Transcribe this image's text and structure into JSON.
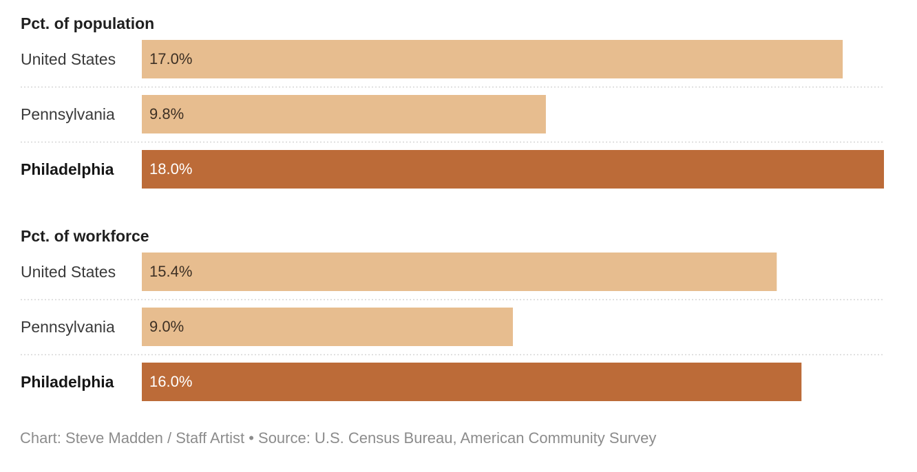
{
  "chart_data": {
    "type": "bar",
    "orientation": "horizontal",
    "xlim": [
      0,
      18.0
    ],
    "value_suffix": "%",
    "colors": {
      "default_bar": "#e7bd8f",
      "highlight_bar": "#bc6b38",
      "default_text": "#3d3024",
      "highlight_text": "#ffffff",
      "divider": "#d6d6d6"
    },
    "panels": [
      {
        "title": "Pct. of population",
        "categories": [
          "United States",
          "Pennsylvania",
          "Philadelphia"
        ],
        "values": [
          17.0,
          9.8,
          18.0
        ],
        "value_labels": [
          "17.0%",
          "9.8%",
          "18.0%"
        ],
        "highlight": [
          false,
          false,
          true
        ]
      },
      {
        "title": "Pct. of workforce",
        "categories": [
          "United States",
          "Pennsylvania",
          "Philadelphia"
        ],
        "values": [
          15.4,
          9.0,
          16.0
        ],
        "value_labels": [
          "15.4%",
          "9.0%",
          "16.0%"
        ],
        "highlight": [
          false,
          false,
          true
        ]
      }
    ]
  },
  "source": "Chart: Steve Madden / Staff Artist • Source: U.S. Census Bureau, American Community Survey"
}
